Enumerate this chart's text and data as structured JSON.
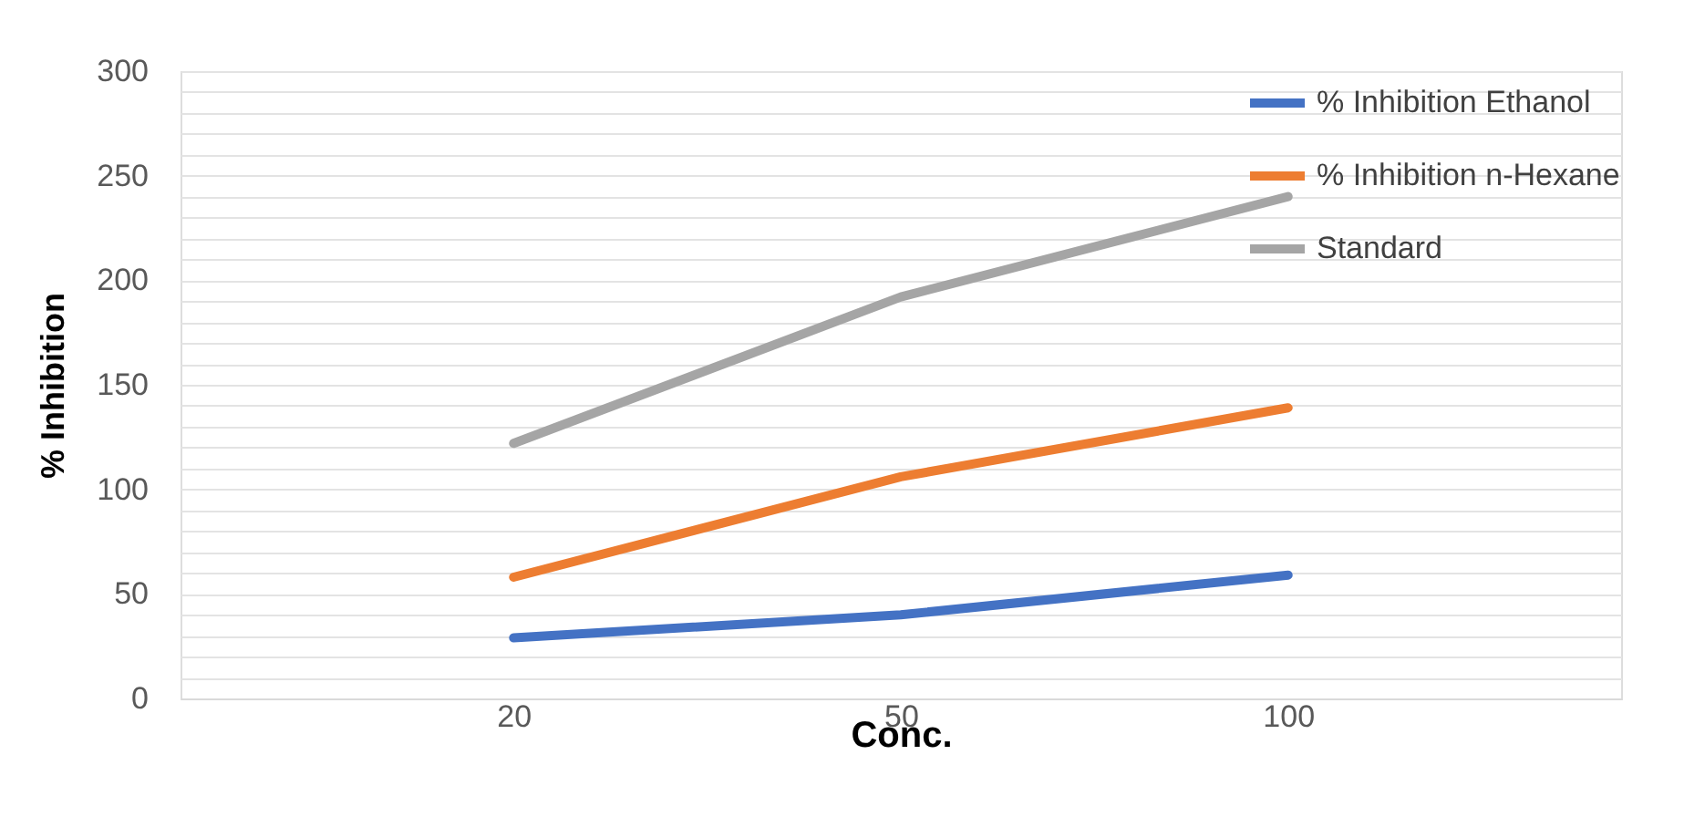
{
  "chart_data": {
    "type": "line",
    "xlabel": "Conc.",
    "ylabel": "% Inhibition",
    "categories": [
      "20",
      "50",
      "100"
    ],
    "series": [
      {
        "name": "% Inhibition Ethanol",
        "color": "#4472c4",
        "values": [
          29,
          40,
          59
        ]
      },
      {
        "name": "% Inhibition n-Hexane",
        "color": "#ed7d31",
        "values": [
          58,
          106,
          139
        ]
      },
      {
        "name": "Standard",
        "color": "#a5a5a5",
        "values": [
          122,
          192,
          240
        ]
      }
    ],
    "ylim": [
      0,
      300
    ],
    "yticks": [
      0,
      {
        "value": 10,
        "label": null
      },
      {
        "value": 20,
        "label": null
      },
      {
        "value": 30,
        "label": null
      },
      {
        "value": 40,
        "label": null
      },
      50,
      {
        "value": 60,
        "label": null
      },
      {
        "value": 70,
        "label": null
      },
      {
        "value": 80,
        "label": null
      },
      {
        "value": 90,
        "label": null
      },
      100,
      {
        "value": 110,
        "label": null
      },
      {
        "value": 120,
        "label": null
      },
      {
        "value": 130,
        "label": null
      },
      {
        "value": 140,
        "label": null
      },
      150,
      {
        "value": 160,
        "label": null
      },
      {
        "value": 170,
        "label": null
      },
      {
        "value": 180,
        "label": null
      },
      {
        "value": 190,
        "label": null
      },
      200,
      {
        "value": 210,
        "label": null
      },
      {
        "value": 220,
        "label": null
      },
      {
        "value": 230,
        "label": null
      },
      {
        "value": 240,
        "label": null
      },
      250,
      {
        "value": 260,
        "label": null
      },
      {
        "value": 270,
        "label": null
      },
      {
        "value": 280,
        "label": null
      },
      {
        "value": 290,
        "label": null
      },
      300
    ],
    "grid": "y",
    "legend": "top right",
    "marker": "none",
    "line_style": "solid"
  }
}
